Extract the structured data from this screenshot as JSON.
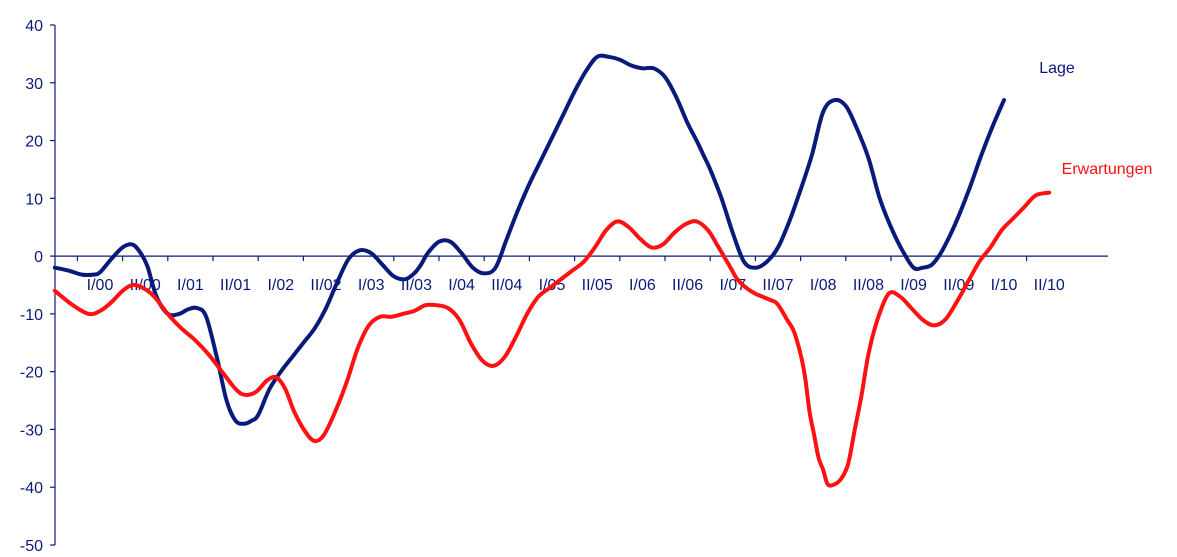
{
  "chart_data": {
    "type": "line",
    "title": "",
    "xlabel": "",
    "ylabel": "",
    "ylim": [
      -50,
      40
    ],
    "yticks": [
      40,
      30,
      20,
      10,
      0,
      -10,
      -20,
      -30,
      -40,
      -50
    ],
    "ytick_labels": [
      "40",
      "30",
      "20",
      "10",
      "0",
      "-10",
      "-20",
      "-30",
      "-40",
      "-50"
    ],
    "categories": [
      "I/00",
      "II/00",
      "I/01",
      "II/01",
      "I/02",
      "II/02",
      "I/03",
      "II/03",
      "I/04",
      "II/04",
      "I/05",
      "II/05",
      "I/06",
      "II/06",
      "I/07",
      "II/07",
      "I/08",
      "II/08",
      "I/09",
      "II/09",
      "I/10",
      "II/10"
    ],
    "x_range": [
      -0.2,
      21.5
    ],
    "grid": false,
    "legend": "inline labels at line ends",
    "series": [
      {
        "name": "Lage",
        "color": "#0a1a7a",
        "x": [
          -1.0,
          -0.7,
          -0.4,
          -0.15,
          0.0,
          0.25,
          0.5,
          0.72,
          0.9,
          1.05,
          1.25,
          1.5,
          1.75,
          1.95,
          2.15,
          2.35,
          2.6,
          2.8,
          3.0,
          3.2,
          3.35,
          3.5,
          3.75,
          4.0,
          4.25,
          4.5,
          4.75,
          5.0,
          5.25,
          5.5,
          5.75,
          6.0,
          6.25,
          6.5,
          6.75,
          6.95,
          7.1,
          7.25,
          7.5,
          7.75,
          8.0,
          8.25,
          8.5,
          8.75,
          9.0,
          9.25,
          9.5,
          9.75,
          10.0,
          10.25,
          10.5,
          10.75,
          11.0,
          11.25,
          11.5,
          11.75,
          12.0,
          12.25,
          12.5,
          12.75,
          13.0,
          13.2,
          13.35,
          13.5,
          13.75,
          14.0,
          14.25,
          14.5,
          14.75,
          15.0,
          15.25,
          15.5,
          15.75,
          16.0,
          16.25,
          16.5,
          16.75,
          17.0,
          17.25,
          17.5,
          17.75,
          18.0,
          18.2,
          18.4,
          18.6,
          18.8,
          19.0,
          19.25,
          19.5,
          19.75,
          20.0
        ],
        "y": [
          -2.0,
          -2.5,
          -3.2,
          -3.2,
          -2.8,
          -0.5,
          1.5,
          2.0,
          0.5,
          -1.8,
          -7.0,
          -10.0,
          -10.0,
          -9.2,
          -9.0,
          -10.5,
          -18.0,
          -25.0,
          -28.5,
          -29.0,
          -28.5,
          -27.5,
          -23.0,
          -20.0,
          -17.5,
          -15.0,
          -12.5,
          -9.0,
          -4.5,
          -0.5,
          1.0,
          0.5,
          -1.5,
          -3.5,
          -4.0,
          -3.0,
          -1.5,
          0.5,
          2.5,
          2.5,
          0.5,
          -2.0,
          -3.0,
          -2.0,
          3.0,
          8.0,
          12.5,
          16.5,
          20.5,
          24.5,
          28.5,
          32.0,
          34.5,
          34.5,
          34.0,
          33.0,
          32.5,
          32.5,
          31.0,
          27.5,
          23.0,
          20.0,
          17.5,
          15.0,
          10.0,
          4.0,
          -1.0,
          -2.0,
          -1.0,
          1.5,
          6.0,
          11.5,
          17.5,
          25.0,
          27.0,
          26.0,
          22.0,
          17.0,
          10.0,
          5.0,
          1.0,
          -2.0,
          -2.0,
          -1.5,
          0.5,
          3.5,
          7.0,
          12.0,
          17.5,
          22.5,
          27.0
        ]
      },
      {
        "name": "Erwartungen",
        "color": "#ff1111",
        "x": [
          -1.0,
          -0.6,
          -0.25,
          0.0,
          0.25,
          0.5,
          0.72,
          0.95,
          1.2,
          1.5,
          1.8,
          2.1,
          2.4,
          2.7,
          3.0,
          3.2,
          3.45,
          3.7,
          3.9,
          4.1,
          4.3,
          4.55,
          4.75,
          4.95,
          5.2,
          5.45,
          5.7,
          5.95,
          6.2,
          6.45,
          6.7,
          6.95,
          7.2,
          7.45,
          7.7,
          7.95,
          8.2,
          8.45,
          8.7,
          8.95,
          9.2,
          9.45,
          9.7,
          9.95,
          10.2,
          10.45,
          10.7,
          10.95,
          11.2,
          11.45,
          11.7,
          11.95,
          12.2,
          12.45,
          12.7,
          12.95,
          13.2,
          13.45,
          13.65,
          13.8,
          13.95,
          14.1,
          14.3,
          14.5,
          14.65,
          14.8,
          14.95,
          15.05,
          15.2,
          15.35,
          15.5,
          15.6,
          15.7,
          15.8,
          15.9,
          16.0,
          16.1,
          16.25,
          16.4,
          16.55,
          16.7,
          16.85,
          17.0,
          17.2,
          17.45,
          17.7,
          17.95,
          18.2,
          18.45,
          18.7,
          18.95,
          19.2,
          19.45,
          19.7,
          19.95,
          20.2,
          20.45,
          20.7,
          21.0
        ],
        "y": [
          -6.0,
          -8.5,
          -10.0,
          -9.5,
          -8.0,
          -6.0,
          -5.0,
          -5.5,
          -7.0,
          -10.0,
          -12.5,
          -14.5,
          -17.0,
          -20.0,
          -23.0,
          -24.0,
          -23.5,
          -21.5,
          -21.0,
          -23.0,
          -27.0,
          -30.5,
          -32.0,
          -31.0,
          -27.0,
          -22.0,
          -16.0,
          -12.0,
          -10.5,
          -10.5,
          -10.0,
          -9.5,
          -8.5,
          -8.5,
          -9.0,
          -11.0,
          -15.0,
          -18.0,
          -19.0,
          -17.5,
          -14.0,
          -10.0,
          -7.0,
          -5.5,
          -4.0,
          -2.5,
          -1.0,
          1.5,
          4.5,
          6.0,
          5.0,
          3.0,
          1.5,
          2.0,
          4.0,
          5.5,
          6.0,
          4.5,
          2.0,
          0.0,
          -2.0,
          -4.0,
          -5.5,
          -6.5,
          -7.0,
          -7.5,
          -8.0,
          -9.0,
          -11.0,
          -13.0,
          -17.0,
          -21.0,
          -27.0,
          -31.0,
          -35.0,
          -37.0,
          -39.5,
          -39.5,
          -38.5,
          -36.0,
          -30.0,
          -24.0,
          -17.0,
          -11.0,
          -6.5,
          -7.0,
          -9.0,
          -11.0,
          -12.0,
          -11.0,
          -8.0,
          -4.5,
          -1.0,
          1.5,
          4.5,
          6.5,
          8.5,
          10.5,
          11.0
        ]
      }
    ],
    "series_labels": [
      {
        "text": "Lage",
        "color": "#0a1a7a"
      },
      {
        "text": "Erwartungen",
        "color": "#ff1111"
      }
    ],
    "axis_color": "#0a1a7a"
  }
}
